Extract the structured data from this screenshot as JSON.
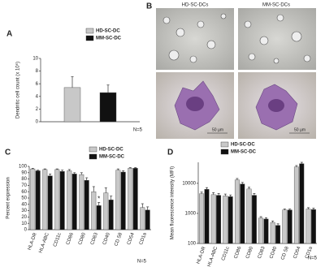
{
  "chart_data": [
    {
      "type": "bar",
      "panel": "A",
      "ylabel": "Dendritic cell count (x 10⁶)",
      "note": "N=5",
      "series": [
        {
          "name": "HD-SC-DC",
          "color": "#c8c8c8",
          "values": [
            5.4
          ],
          "errors": [
            1.7
          ]
        },
        {
          "name": "MM-SC-DC",
          "color": "#111111",
          "values": [
            4.6
          ],
          "errors": [
            1.2
          ]
        }
      ],
      "ylim": [
        0,
        10
      ],
      "yticks": [
        0,
        2,
        4,
        6,
        8,
        10
      ]
    },
    {
      "type": "bar",
      "panel": "C",
      "ylabel": "Percent expression",
      "note": "N=5",
      "annotation": "*",
      "categories": [
        "HLA-DR",
        "HLA-ABC",
        "CD11c",
        "CD86",
        "CD80",
        "CD83",
        "CD40",
        "CD 58",
        "CD54",
        "CD1a"
      ],
      "series": [
        {
          "name": "HD-SC-DC",
          "color": "#c8c8c8",
          "values": [
            96,
            95,
            95,
            93,
            87,
            60,
            58,
            94,
            97,
            35
          ],
          "errors": [
            1,
            1,
            1,
            2,
            3,
            8,
            8,
            2,
            1,
            6
          ]
        },
        {
          "name": "MM-SC-DC",
          "color": "#111111",
          "values": [
            93,
            85,
            92,
            88,
            78,
            38,
            47,
            91,
            97,
            31
          ],
          "errors": [
            1,
            3,
            2,
            2,
            4,
            5,
            6,
            2,
            1,
            5
          ]
        }
      ],
      "ylim": [
        0,
        100
      ],
      "yticks": [
        0,
        10,
        20,
        30,
        40,
        50,
        60,
        70,
        80,
        90,
        100
      ]
    },
    {
      "type": "bar",
      "panel": "D",
      "ylabel": "Mean fluorescence intensity (MFI)",
      "note": "N=5",
      "log_scale": true,
      "categories": [
        "HLA-DR",
        "HLA-ABC",
        "CD11c",
        "CD86",
        "CD80",
        "CD83",
        "CD40",
        "CD 58",
        "CD54",
        "CD1a"
      ],
      "series": [
        {
          "name": "HD-SC-DC",
          "color": "#c8c8c8",
          "values": [
            4500,
            4200,
            3800,
            13000,
            6500,
            700,
            500,
            1300,
            35000,
            1400
          ],
          "errors": [
            600,
            700,
            600,
            1500,
            900,
            80,
            60,
            100,
            4000,
            150
          ]
        },
        {
          "name": "MM-SC-DC",
          "color": "#111111",
          "values": [
            6300,
            4000,
            3600,
            9500,
            4000,
            650,
            400,
            1300,
            45000,
            1350
          ],
          "errors": [
            900,
            600,
            500,
            1200,
            600,
            70,
            50,
            100,
            5000,
            150
          ]
        }
      ],
      "ylim": [
        100,
        50000
      ],
      "yticks": [
        100,
        1000,
        10000
      ]
    }
  ],
  "panel_b": {
    "panel": "B",
    "labels": [
      "HD-SC-DCs",
      "MM-SC-DCs"
    ],
    "scale_bars": [
      "50 µm",
      "50 µm"
    ]
  }
}
